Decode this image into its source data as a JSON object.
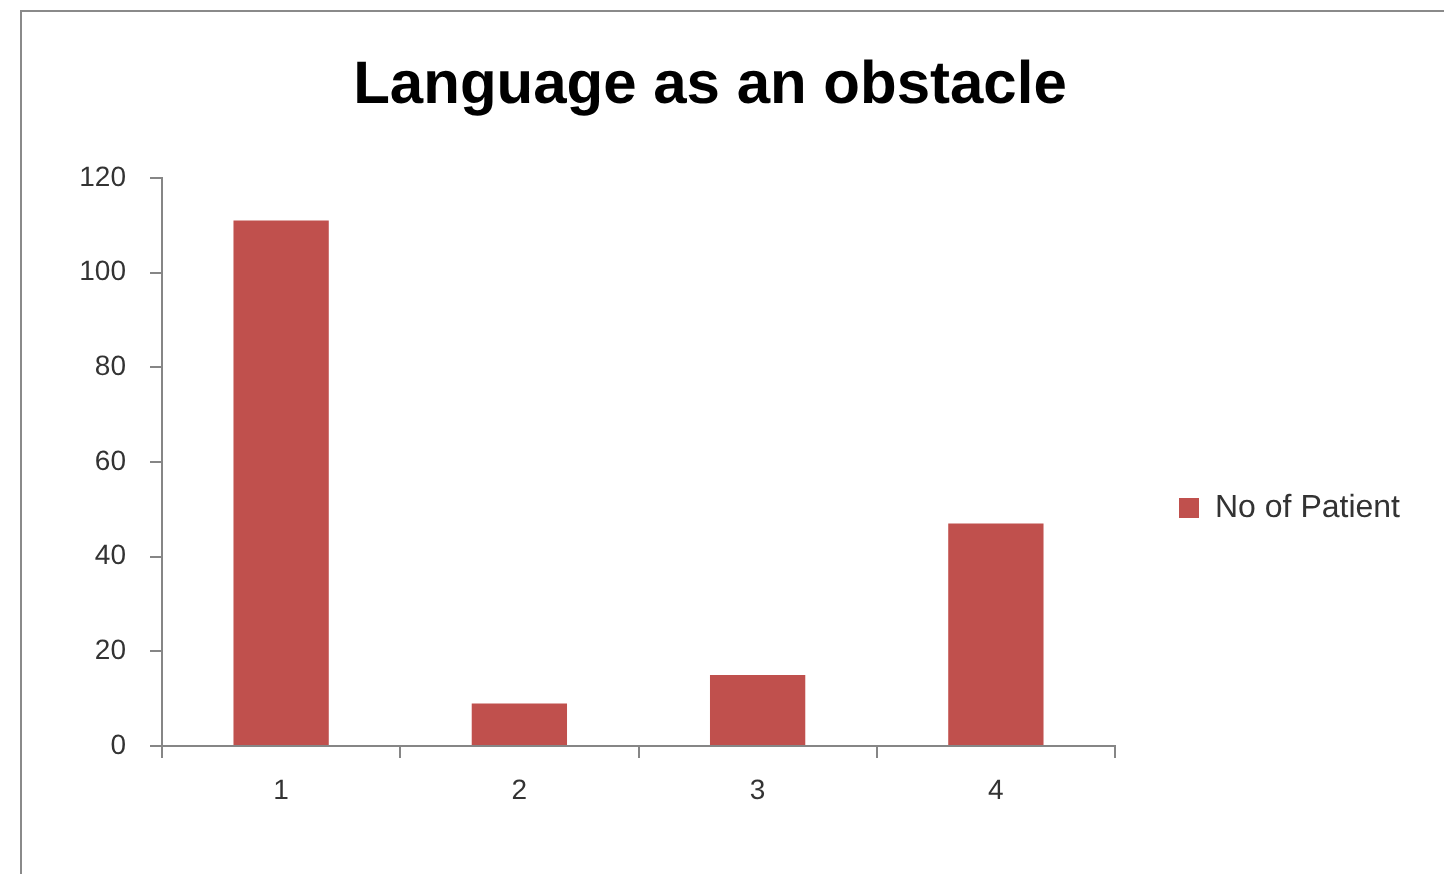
{
  "chart_data": {
    "type": "bar",
    "title": "Language as an obstacle",
    "categories": [
      "1",
      "2",
      "3",
      "4"
    ],
    "series": [
      {
        "name": "No of Patient",
        "color": "#c0504d",
        "values": [
          111,
          9,
          15,
          47
        ]
      }
    ],
    "ylim": [
      0,
      120
    ],
    "yticks": [
      0,
      20,
      40,
      60,
      80,
      100,
      120
    ],
    "grid": false,
    "legend": "right"
  }
}
